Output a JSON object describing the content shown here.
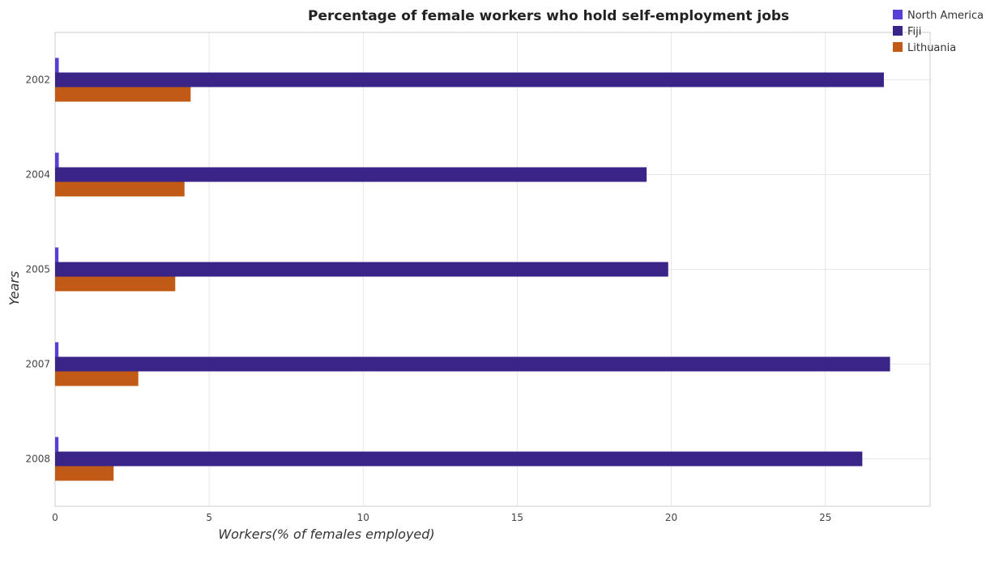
{
  "chart_data": {
    "type": "bar",
    "orientation": "horizontal",
    "title": "Percentage of female workers who hold self-employment jobs",
    "xlabel": "Workers(% of females employed)",
    "ylabel": "Years",
    "categories": [
      "2002",
      "2004",
      "2005",
      "2007",
      "2008"
    ],
    "xlim": [
      0,
      28.4
    ],
    "xticks": [
      0,
      5,
      10,
      15,
      20,
      25
    ],
    "xtick_labels": [
      "0",
      "5",
      "10",
      "15",
      "20",
      "25"
    ],
    "grid": true,
    "legend_position": "top-right",
    "series": [
      {
        "name": "North America",
        "color": "#5a3fd6",
        "values": [
          0.12,
          0.12,
          0.11,
          0.11,
          0.11
        ]
      },
      {
        "name": "Fiji",
        "color": "#3a2487",
        "values": [
          26.9,
          19.2,
          19.9,
          27.1,
          26.2
        ]
      },
      {
        "name": "Lithuania",
        "color": "#c05a16",
        "values": [
          4.4,
          4.2,
          3.9,
          2.7,
          1.9
        ]
      }
    ]
  }
}
